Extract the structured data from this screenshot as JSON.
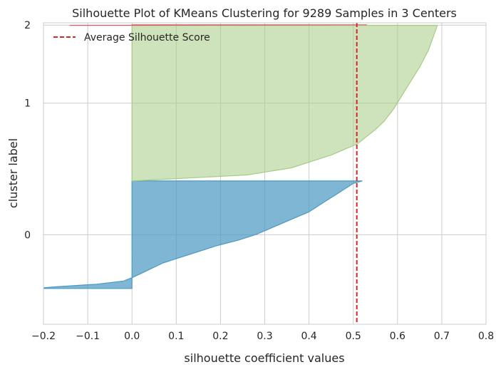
{
  "chart_data": {
    "type": "area",
    "title": "Silhouette Plot of KMeans Clustering for 9289 Samples in 3 Centers",
    "xlabel": "silhouette coefficient values",
    "ylabel": "cluster label",
    "xlim": [
      -0.2,
      0.8
    ],
    "xticks": [
      "−0.2",
      "−0.1",
      "0.0",
      "0.1",
      "0.2",
      "0.3",
      "0.4",
      "0.5",
      "0.6",
      "0.7",
      "0.8"
    ],
    "xtick_values": [
      -0.2,
      -0.1,
      0.0,
      0.1,
      0.2,
      0.3,
      0.4,
      0.5,
      0.6,
      0.7,
      0.8
    ],
    "yticks": [
      "0",
      "1",
      "2"
    ],
    "grid": true,
    "legend": {
      "position": "top-left",
      "entries": [
        "Average Silhouette Score"
      ]
    },
    "average_silhouette_score": 0.508,
    "colors": {
      "average_line": "#d62728",
      "grid": "#cccccc",
      "frame": "#cccccc"
    },
    "series": [
      {
        "cluster": "0",
        "color": "#4c9ac2",
        "fill_opacity": 0.72,
        "lower_rank": 0,
        "upper_rank": 3790,
        "profile": [
          [
            0,
            -0.22
          ],
          [
            60,
            -0.17
          ],
          [
            150,
            -0.08
          ],
          [
            260,
            -0.02
          ],
          [
            380,
            0.0
          ],
          [
            600,
            0.03
          ],
          [
            900,
            0.07
          ],
          [
            1200,
            0.13
          ],
          [
            1500,
            0.19
          ],
          [
            1700,
            0.24
          ],
          [
            1900,
            0.28
          ],
          [
            2100,
            0.31
          ],
          [
            2300,
            0.34
          ],
          [
            2500,
            0.37
          ],
          [
            2700,
            0.4
          ],
          [
            2900,
            0.42
          ],
          [
            3100,
            0.44
          ],
          [
            3300,
            0.46
          ],
          [
            3500,
            0.48
          ],
          [
            3700,
            0.5
          ],
          [
            3790,
            0.52
          ]
        ]
      },
      {
        "cluster": "1",
        "color": "#a6cc84",
        "fill_opacity": 0.55,
        "lower_rank": 3790,
        "upper_rank": 9269,
        "profile": [
          [
            3790,
            0.0
          ],
          [
            4000,
            0.26
          ],
          [
            4250,
            0.36
          ],
          [
            4500,
            0.41
          ],
          [
            4700,
            0.45
          ],
          [
            4900,
            0.48
          ],
          [
            5100,
            0.51
          ],
          [
            5350,
            0.53
          ],
          [
            5600,
            0.55
          ],
          [
            5900,
            0.57
          ],
          [
            6300,
            0.59
          ],
          [
            6800,
            0.61
          ],
          [
            7300,
            0.63
          ],
          [
            7800,
            0.65
          ],
          [
            8400,
            0.67
          ],
          [
            9269,
            0.69
          ]
        ]
      },
      {
        "cluster": "2",
        "color": "#d65f5f",
        "fill_opacity": 0.9,
        "lower_rank": 9269,
        "upper_rank": 9289,
        "profile": [
          [
            9269,
            -0.14
          ],
          [
            9272,
            0.0
          ],
          [
            9278,
            0.2
          ],
          [
            9284,
            0.4
          ],
          [
            9289,
            0.53
          ]
        ]
      }
    ]
  }
}
